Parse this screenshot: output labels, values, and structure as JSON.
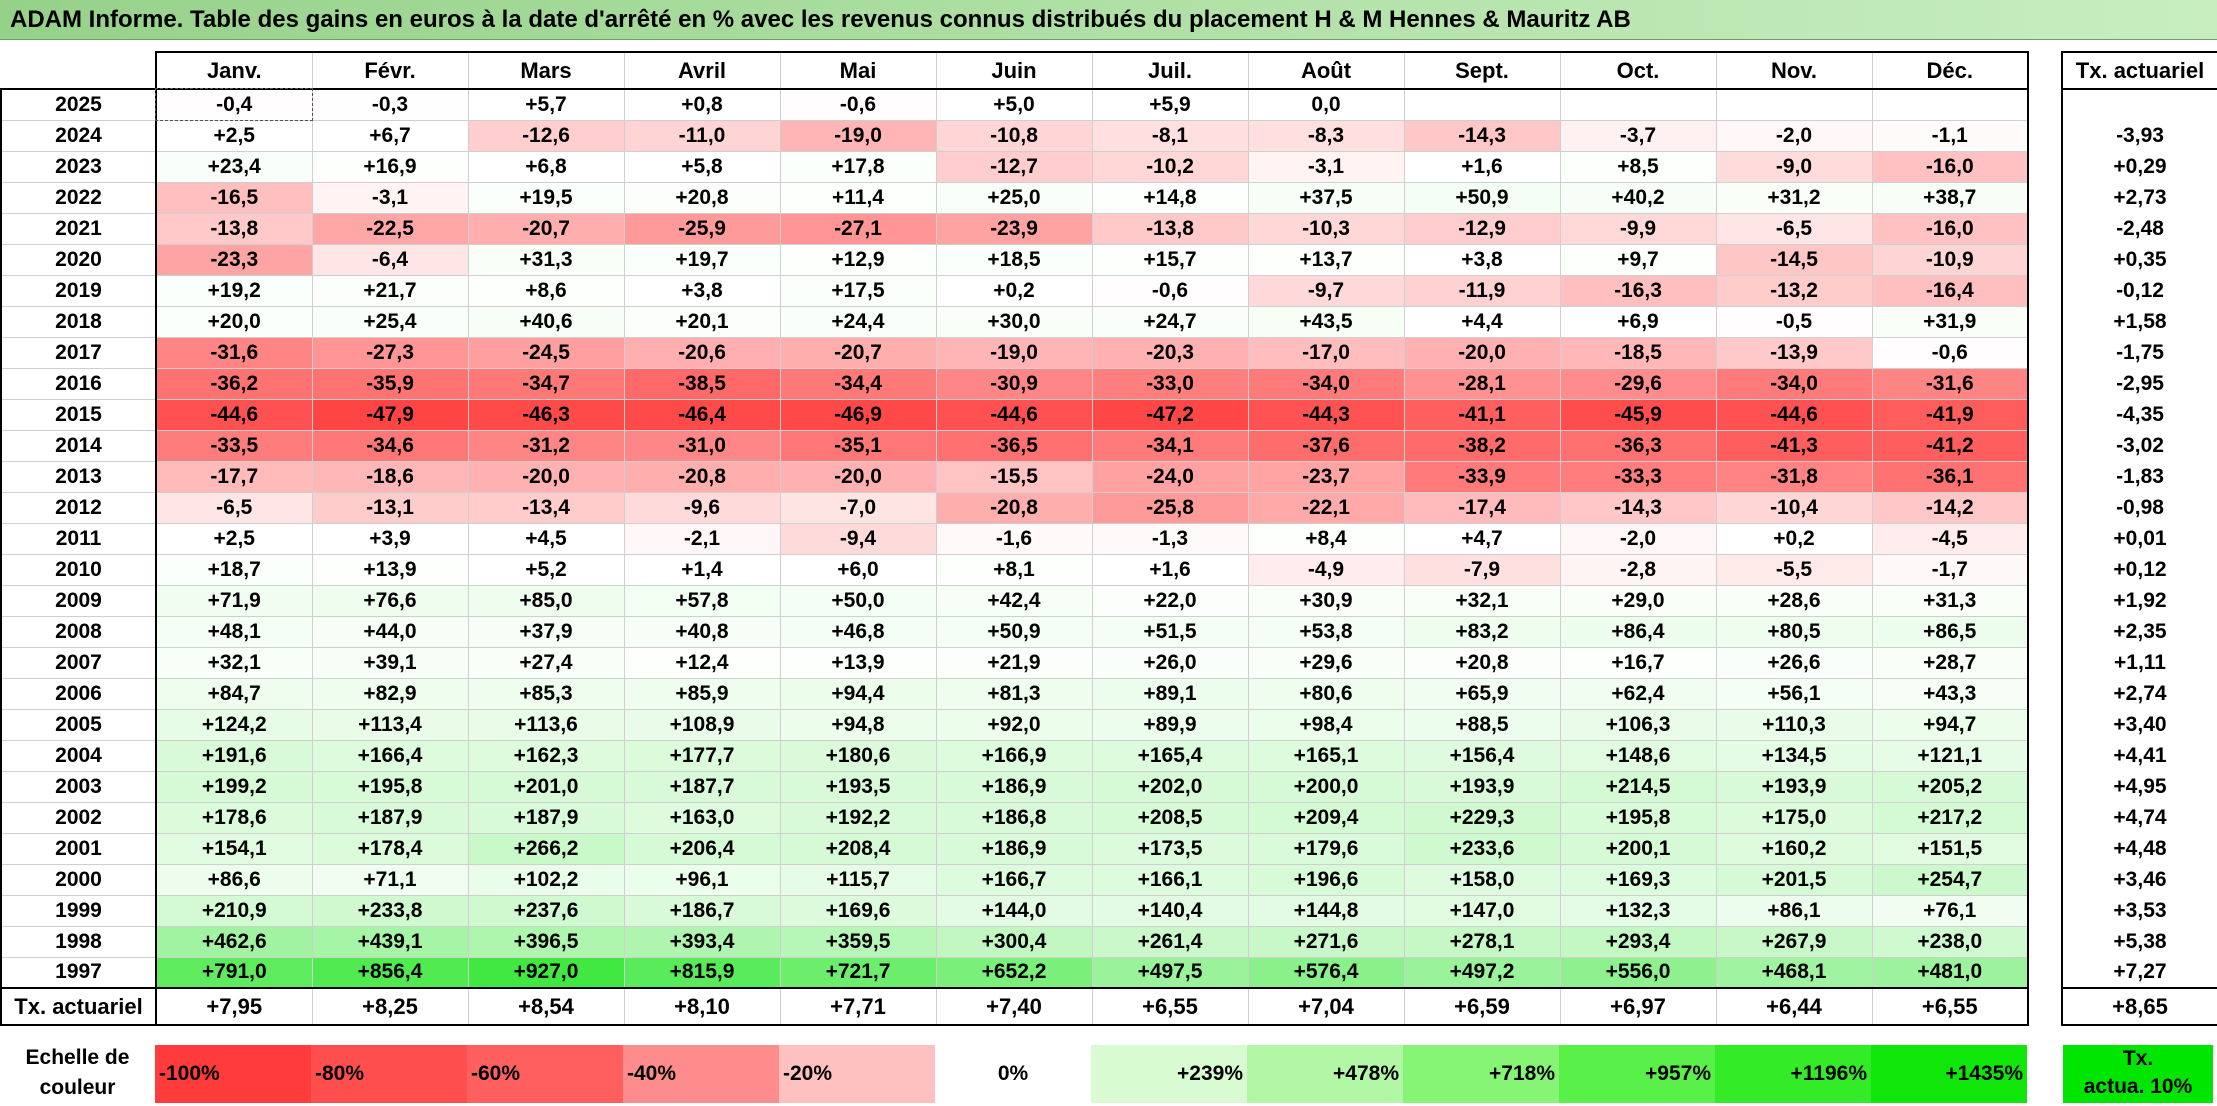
{
  "title": "ADAM Informe. Table des gains en euros à la date d'arrêté en % avec les revenus connus distribués du placement H & M Hennes & Mauritz AB",
  "months": [
    "Janv.",
    "Févr.",
    "Mars",
    "Avril",
    "Mai",
    "Juin",
    "Juil.",
    "Août",
    "Sept.",
    "Oct.",
    "Nov.",
    "Déc."
  ],
  "tx_header": "Tx. actuariel",
  "rows": [
    {
      "year": "2025",
      "values": [
        "-0,4",
        "-0,3",
        "+5,7",
        "+0,8",
        "-0,6",
        "+5,0",
        "+5,9",
        "0,0",
        "",
        "",
        "",
        ""
      ],
      "tx": ""
    },
    {
      "year": "2024",
      "values": [
        "+2,5",
        "+6,7",
        "-12,6",
        "-11,0",
        "-19,0",
        "-10,8",
        "-8,1",
        "-8,3",
        "-14,3",
        "-3,7",
        "-2,0",
        "-1,1"
      ],
      "tx": "-3,93"
    },
    {
      "year": "2023",
      "values": [
        "+23,4",
        "+16,9",
        "+6,8",
        "+5,8",
        "+17,8",
        "-12,7",
        "-10,2",
        "-3,1",
        "+1,6",
        "+8,5",
        "-9,0",
        "-16,0"
      ],
      "tx": "+0,29"
    },
    {
      "year": "2022",
      "values": [
        "-16,5",
        "-3,1",
        "+19,5",
        "+20,8",
        "+11,4",
        "+25,0",
        "+14,8",
        "+37,5",
        "+50,9",
        "+40,2",
        "+31,2",
        "+38,7"
      ],
      "tx": "+2,73"
    },
    {
      "year": "2021",
      "values": [
        "-13,8",
        "-22,5",
        "-20,7",
        "-25,9",
        "-27,1",
        "-23,9",
        "-13,8",
        "-10,3",
        "-12,9",
        "-9,9",
        "-6,5",
        "-16,0"
      ],
      "tx": "-2,48"
    },
    {
      "year": "2020",
      "values": [
        "-23,3",
        "-6,4",
        "+31,3",
        "+19,7",
        "+12,9",
        "+18,5",
        "+15,7",
        "+13,7",
        "+3,8",
        "+9,7",
        "-14,5",
        "-10,9"
      ],
      "tx": "+0,35"
    },
    {
      "year": "2019",
      "values": [
        "+19,2",
        "+21,7",
        "+8,6",
        "+3,8",
        "+17,5",
        "+0,2",
        "-0,6",
        "-9,7",
        "-11,9",
        "-16,3",
        "-13,2",
        "-16,4"
      ],
      "tx": "-0,12"
    },
    {
      "year": "2018",
      "values": [
        "+20,0",
        "+25,4",
        "+40,6",
        "+20,1",
        "+24,4",
        "+30,0",
        "+24,7",
        "+43,5",
        "+4,4",
        "+6,9",
        "-0,5",
        "+31,9"
      ],
      "tx": "+1,58"
    },
    {
      "year": "2017",
      "values": [
        "-31,6",
        "-27,3",
        "-24,5",
        "-20,6",
        "-20,7",
        "-19,0",
        "-20,3",
        "-17,0",
        "-20,0",
        "-18,5",
        "-13,9",
        "-0,6"
      ],
      "tx": "-1,75"
    },
    {
      "year": "2016",
      "values": [
        "-36,2",
        "-35,9",
        "-34,7",
        "-38,5",
        "-34,4",
        "-30,9",
        "-33,0",
        "-34,0",
        "-28,1",
        "-29,6",
        "-34,0",
        "-31,6"
      ],
      "tx": "-2,95"
    },
    {
      "year": "2015",
      "values": [
        "-44,6",
        "-47,9",
        "-46,3",
        "-46,4",
        "-46,9",
        "-44,6",
        "-47,2",
        "-44,3",
        "-41,1",
        "-45,9",
        "-44,6",
        "-41,9"
      ],
      "tx": "-4,35"
    },
    {
      "year": "2014",
      "values": [
        "-33,5",
        "-34,6",
        "-31,2",
        "-31,0",
        "-35,1",
        "-36,5",
        "-34,1",
        "-37,6",
        "-38,2",
        "-36,3",
        "-41,3",
        "-41,2"
      ],
      "tx": "-3,02"
    },
    {
      "year": "2013",
      "values": [
        "-17,7",
        "-18,6",
        "-20,0",
        "-20,8",
        "-20,0",
        "-15,5",
        "-24,0",
        "-23,7",
        "-33,9",
        "-33,3",
        "-31,8",
        "-36,1"
      ],
      "tx": "-1,83"
    },
    {
      "year": "2012",
      "values": [
        "-6,5",
        "-13,1",
        "-13,4",
        "-9,6",
        "-7,0",
        "-20,8",
        "-25,8",
        "-22,1",
        "-17,4",
        "-14,3",
        "-10,4",
        "-14,2"
      ],
      "tx": "-0,98"
    },
    {
      "year": "2011",
      "values": [
        "+2,5",
        "+3,9",
        "+4,5",
        "-2,1",
        "-9,4",
        "-1,6",
        "-1,3",
        "+8,4",
        "+4,7",
        "-2,0",
        "+0,2",
        "-4,5"
      ],
      "tx": "+0,01"
    },
    {
      "year": "2010",
      "values": [
        "+18,7",
        "+13,9",
        "+5,2",
        "+1,4",
        "+6,0",
        "+8,1",
        "+1,6",
        "-4,9",
        "-7,9",
        "-2,8",
        "-5,5",
        "-1,7"
      ],
      "tx": "+0,12"
    },
    {
      "year": "2009",
      "values": [
        "+71,9",
        "+76,6",
        "+85,0",
        "+57,8",
        "+50,0",
        "+42,4",
        "+22,0",
        "+30,9",
        "+32,1",
        "+29,0",
        "+28,6",
        "+31,3"
      ],
      "tx": "+1,92"
    },
    {
      "year": "2008",
      "values": [
        "+48,1",
        "+44,0",
        "+37,9",
        "+40,8",
        "+46,8",
        "+50,9",
        "+51,5",
        "+53,8",
        "+83,2",
        "+86,4",
        "+80,5",
        "+86,5"
      ],
      "tx": "+2,35"
    },
    {
      "year": "2007",
      "values": [
        "+32,1",
        "+39,1",
        "+27,4",
        "+12,4",
        "+13,9",
        "+21,9",
        "+26,0",
        "+29,6",
        "+20,8",
        "+16,7",
        "+26,6",
        "+28,7"
      ],
      "tx": "+1,11"
    },
    {
      "year": "2006",
      "values": [
        "+84,7",
        "+82,9",
        "+85,3",
        "+85,9",
        "+94,4",
        "+81,3",
        "+89,1",
        "+80,6",
        "+65,9",
        "+62,4",
        "+56,1",
        "+43,3"
      ],
      "tx": "+2,74"
    },
    {
      "year": "2005",
      "values": [
        "+124,2",
        "+113,4",
        "+113,6",
        "+108,9",
        "+94,8",
        "+92,0",
        "+89,9",
        "+98,4",
        "+88,5",
        "+106,3",
        "+110,3",
        "+94,7"
      ],
      "tx": "+3,40"
    },
    {
      "year": "2004",
      "values": [
        "+191,6",
        "+166,4",
        "+162,3",
        "+177,7",
        "+180,6",
        "+166,9",
        "+165,4",
        "+165,1",
        "+156,4",
        "+148,6",
        "+134,5",
        "+121,1"
      ],
      "tx": "+4,41"
    },
    {
      "year": "2003",
      "values": [
        "+199,2",
        "+195,8",
        "+201,0",
        "+187,7",
        "+193,5",
        "+186,9",
        "+202,0",
        "+200,0",
        "+193,9",
        "+214,5",
        "+193,9",
        "+205,2"
      ],
      "tx": "+4,95"
    },
    {
      "year": "2002",
      "values": [
        "+178,6",
        "+187,9",
        "+187,9",
        "+163,0",
        "+192,2",
        "+186,8",
        "+208,5",
        "+209,4",
        "+229,3",
        "+195,8",
        "+175,0",
        "+217,2"
      ],
      "tx": "+4,74"
    },
    {
      "year": "2001",
      "values": [
        "+154,1",
        "+178,4",
        "+266,2",
        "+206,4",
        "+208,4",
        "+186,9",
        "+173,5",
        "+179,6",
        "+233,6",
        "+200,1",
        "+160,2",
        "+151,5"
      ],
      "tx": "+4,48"
    },
    {
      "year": "2000",
      "values": [
        "+86,6",
        "+71,1",
        "+102,2",
        "+96,1",
        "+115,7",
        "+166,7",
        "+166,1",
        "+196,6",
        "+158,0",
        "+169,3",
        "+201,5",
        "+254,7"
      ],
      "tx": "+3,46"
    },
    {
      "year": "1999",
      "values": [
        "+210,9",
        "+233,8",
        "+237,6",
        "+186,7",
        "+169,6",
        "+144,0",
        "+140,4",
        "+144,8",
        "+147,0",
        "+132,3",
        "+86,1",
        "+76,1"
      ],
      "tx": "+3,53"
    },
    {
      "year": "1998",
      "values": [
        "+462,6",
        "+439,1",
        "+396,5",
        "+393,4",
        "+359,5",
        "+300,4",
        "+261,4",
        "+271,6",
        "+278,1",
        "+293,4",
        "+267,9",
        "+238,0"
      ],
      "tx": "+5,38"
    },
    {
      "year": "1997",
      "values": [
        "+791,0",
        "+856,4",
        "+927,0",
        "+815,9",
        "+721,7",
        "+652,2",
        "+497,5",
        "+576,4",
        "+497,2",
        "+556,0",
        "+468,1",
        "+481,0"
      ],
      "tx": "+7,27"
    }
  ],
  "footer": {
    "label": "Tx. actuariel",
    "values": [
      "+7,95",
      "+8,25",
      "+8,54",
      "+8,10",
      "+7,71",
      "+7,40",
      "+6,55",
      "+7,04",
      "+6,59",
      "+6,97",
      "+6,44",
      "+6,55"
    ],
    "tx": "+8,65"
  },
  "scale": {
    "label_line1": "Echelle de",
    "label_line2": "couleur",
    "steps": [
      {
        "text": "-100%",
        "color": "#ff3b3b"
      },
      {
        "text": "-80%",
        "color": "#ff4e4e"
      },
      {
        "text": "-60%",
        "color": "#ff5f5f"
      },
      {
        "text": "-40%",
        "color": "#ff8c8c"
      },
      {
        "text": "-20%",
        "color": "#ffc0c0"
      },
      {
        "text": "0%",
        "color": "#ffffff"
      },
      {
        "text": "+239%",
        "color": "#d8fbd2"
      },
      {
        "text": "+478%",
        "color": "#b2f7a6"
      },
      {
        "text": "+718%",
        "color": "#86f575"
      },
      {
        "text": "+957%",
        "color": "#5af04a"
      },
      {
        "text": "+1196%",
        "color": "#33eb26"
      },
      {
        "text": "+1435%",
        "color": "#11e60a"
      }
    ],
    "tx_line1": "Tx.",
    "tx_line2": "actua. 10%"
  }
}
